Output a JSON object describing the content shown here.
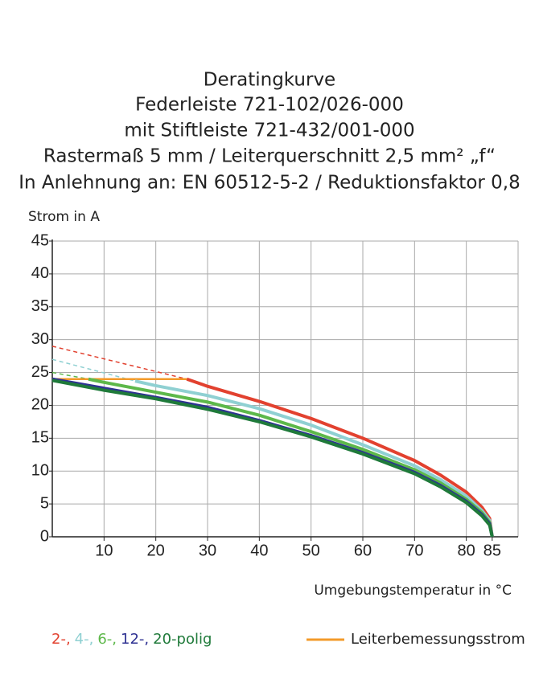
{
  "chart_data": {
    "type": "line",
    "title_lines": [
      "Deratingkurve",
      "Federleiste 721-102/026-000",
      "mit Stiftleiste 721-432/001-000",
      "Rastermaß 5 mm / Leiterquerschnitt 2,5 mm² „f“",
      "In Anlehnung an: EN 60512-5-2 / Reduktionsfaktor 0,8"
    ],
    "y_label": "Strom in A",
    "x_label": "Umgebungstemperatur in °C",
    "xlim": [
      0,
      90
    ],
    "ylim": [
      0,
      45
    ],
    "xticks": [
      10,
      20,
      30,
      40,
      50,
      60,
      70,
      80,
      85
    ],
    "xgrid": [
      10,
      20,
      30,
      40,
      50,
      60,
      70,
      80,
      90
    ],
    "yticks": [
      0,
      5,
      10,
      15,
      20,
      25,
      30,
      35,
      40,
      45
    ],
    "grid": true,
    "series": [
      {
        "name": "2-,",
        "color": "#e2412f",
        "x": [
          26,
          30,
          40,
          50,
          60,
          70,
          75,
          80,
          83,
          84.5,
          85
        ],
        "values": [
          24,
          22.9,
          20.6,
          18,
          15,
          11.6,
          9.4,
          6.8,
          4.5,
          2.8,
          0
        ],
        "projection_x": [
          0,
          26
        ],
        "projection_values": [
          29,
          24
        ]
      },
      {
        "name": "4-,",
        "color": "#8fd0d2",
        "x": [
          16,
          20,
          30,
          40,
          50,
          60,
          70,
          75,
          80,
          83,
          84.5,
          85
        ],
        "values": [
          23.7,
          23,
          21.5,
          19.5,
          17,
          14,
          10.8,
          8.7,
          6.2,
          4,
          2.5,
          0
        ],
        "projection_x": [
          0,
          16
        ],
        "projection_values": [
          27,
          23.7
        ]
      },
      {
        "name": "6-,",
        "color": "#5db84a",
        "x": [
          7,
          10,
          20,
          30,
          40,
          50,
          60,
          70,
          75,
          80,
          83,
          84.5,
          85
        ],
        "values": [
          24,
          23.5,
          22,
          20.5,
          18.5,
          16,
          13.3,
          10.2,
          8.2,
          5.7,
          3.7,
          2.2,
          0
        ],
        "projection_x": [
          0,
          7
        ],
        "projection_values": [
          25,
          24
        ]
      },
      {
        "name": "12-,",
        "color": "#2e3192",
        "x": [
          0,
          10,
          20,
          30,
          40,
          50,
          60,
          70,
          75,
          80,
          83,
          84.5,
          85
        ],
        "values": [
          24,
          22.6,
          21.2,
          19.7,
          17.7,
          15.4,
          12.8,
          9.8,
          7.8,
          5.4,
          3.4,
          2,
          0
        ]
      },
      {
        "name": "20-",
        "color": "#1f7a3a",
        "x": [
          0,
          10,
          20,
          30,
          40,
          50,
          60,
          70,
          75,
          80,
          83,
          84.5,
          85
        ],
        "values": [
          23.8,
          22.3,
          21,
          19.4,
          17.5,
          15.2,
          12.6,
          9.6,
          7.6,
          5.2,
          3.2,
          1.8,
          0
        ]
      }
    ],
    "legend_suffix": "polig",
    "rated_current": {
      "name": "Leiterbemessungsstrom",
      "color": "#f39a2a",
      "x": [
        0,
        26
      ],
      "values": [
        24,
        24
      ]
    }
  }
}
